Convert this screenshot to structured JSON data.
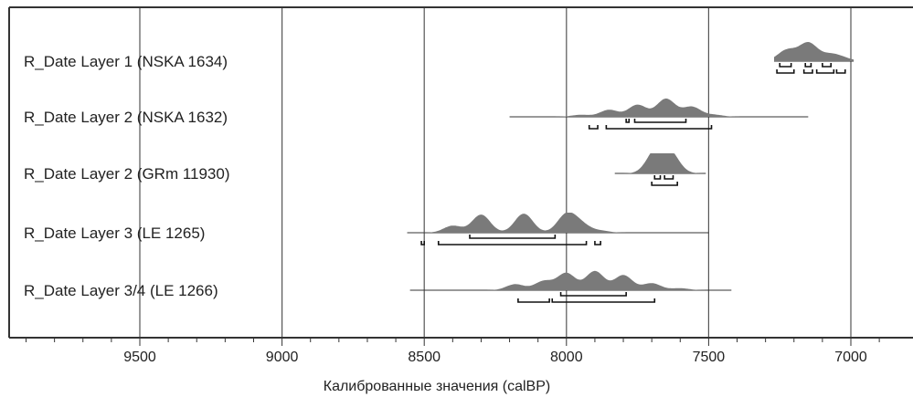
{
  "chart_data": {
    "type": "probability-distribution-plot",
    "title": "",
    "xlabel": "Калиброванные значения (calBP)",
    "ylabel": "",
    "x_reversed": true,
    "xlim": [
      9950,
      6800
    ],
    "xticks": [
      "9500",
      "9000",
      "8500",
      "8000",
      "7500",
      "7000"
    ],
    "xtick_values": [
      9500,
      9000,
      8500,
      8000,
      7500,
      7000
    ],
    "grid": true,
    "colors": {
      "distribution": "#7a7a7a",
      "line": "#333333",
      "grid": "#555555",
      "text": "#222222"
    },
    "series": [
      {
        "name": "R_Date Layer 1 (NSKA 1634)",
        "range": [
          7270,
          6990
        ],
        "peaks": [
          [
            7225,
            0.55
          ],
          [
            7150,
            0.9
          ],
          [
            7075,
            0.3
          ],
          [
            7030,
            0.15
          ]
        ],
        "hpd_1sigma": [
          [
            7250,
            7210
          ],
          [
            7160,
            7140
          ],
          [
            7100,
            7070
          ]
        ],
        "hpd_2sigma": [
          [
            7260,
            7200
          ],
          [
            7165,
            7135
          ],
          [
            7120,
            7060
          ],
          [
            7050,
            7020
          ]
        ]
      },
      {
        "name": "R_Date Layer 2 (NSKA 1632)",
        "range": [
          8200,
          7150
        ],
        "peaks": [
          [
            7950,
            0.1
          ],
          [
            7850,
            0.35
          ],
          [
            7750,
            0.6
          ],
          [
            7650,
            0.9
          ],
          [
            7560,
            0.5
          ],
          [
            7480,
            0.1
          ]
        ],
        "hpd_1sigma": [
          [
            7790,
            7780
          ],
          [
            7760,
            7580
          ]
        ],
        "hpd_2sigma": [
          [
            7920,
            7890
          ],
          [
            7860,
            7490
          ]
        ]
      },
      {
        "name": "R_Date Layer 2 (GRm 11930)",
        "range": [
          7830,
          7510
        ],
        "peaks": [
          [
            7690,
            0.85
          ],
          [
            7660,
            0.55
          ],
          [
            7630,
            0.7
          ]
        ],
        "hpd_1sigma": [
          [
            7690,
            7670
          ],
          [
            7655,
            7625
          ]
        ],
        "hpd_2sigma": [
          [
            7700,
            7610
          ]
        ]
      },
      {
        "name": "R_Date Layer 3 (LE 1265)",
        "range": [
          8560,
          7500
        ],
        "peaks": [
          [
            8400,
            0.35
          ],
          [
            8300,
            0.9
          ],
          [
            8150,
            0.95
          ],
          [
            8000,
            0.9
          ],
          [
            7950,
            0.4
          ],
          [
            7880,
            0.1
          ]
        ],
        "hpd_1sigma": [
          [
            8340,
            8040
          ]
        ],
        "hpd_2sigma": [
          [
            8510,
            8500
          ],
          [
            8450,
            7930
          ],
          [
            7900,
            7880
          ]
        ]
      },
      {
        "name": "R_Date Layer 3/4 (LE 1266)",
        "range": [
          8550,
          7420
        ],
        "peaks": [
          [
            8180,
            0.3
          ],
          [
            8080,
            0.45
          ],
          [
            8000,
            0.85
          ],
          [
            7900,
            0.95
          ],
          [
            7800,
            0.75
          ],
          [
            7700,
            0.35
          ],
          [
            7600,
            0.1
          ]
        ],
        "hpd_1sigma": [
          [
            8020,
            7790
          ]
        ],
        "hpd_2sigma": [
          [
            8170,
            8060
          ],
          [
            8050,
            7690
          ]
        ]
      }
    ]
  }
}
